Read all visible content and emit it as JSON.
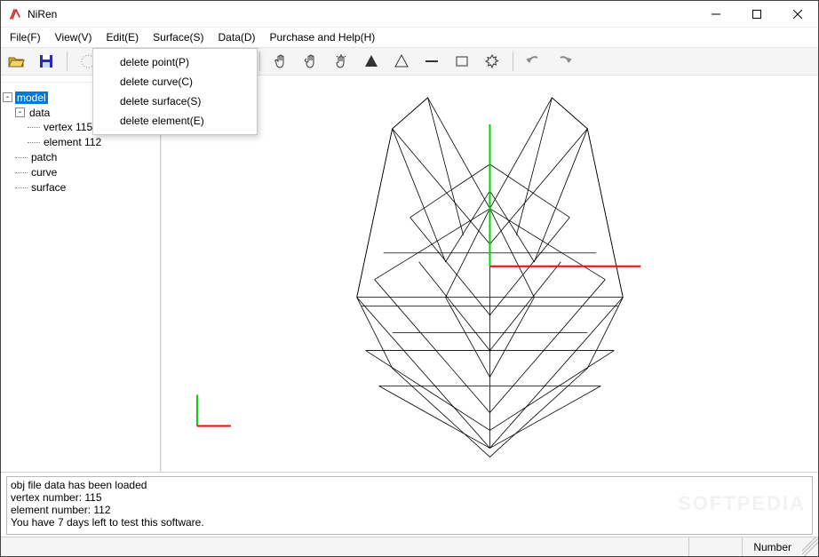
{
  "app": {
    "title": "NiRen"
  },
  "menu": {
    "items": [
      "File(F)",
      "View(V)",
      "Edit(E)",
      "Surface(S)",
      "Data(D)",
      "Purchase and  Help(H)"
    ]
  },
  "dropdown": {
    "items": [
      "delete point(P)",
      "delete curve(C)",
      "delete surface(S)",
      "delete element(E)"
    ]
  },
  "toolbar": {
    "icons": [
      {
        "name": "open-icon",
        "kind": "open",
        "sel": false
      },
      {
        "name": "save-icon",
        "kind": "save",
        "sel": false
      },
      {
        "name": "sep"
      },
      {
        "name": "sphere-dots-icon",
        "kind": "spheredots",
        "sel": false
      },
      {
        "name": "cube-icon",
        "kind": "cube",
        "sel": false
      },
      {
        "name": "globe1-icon",
        "kind": "globe1",
        "sel": false
      },
      {
        "name": "globe2-icon",
        "kind": "globe2",
        "sel": false
      },
      {
        "name": "globe3-icon",
        "kind": "globe3",
        "sel": true
      },
      {
        "name": "sphere-gold-icon",
        "kind": "spheregold",
        "sel": false
      },
      {
        "name": "sep"
      },
      {
        "name": "hand-icon",
        "kind": "hand",
        "sel": false
      },
      {
        "name": "hand-left-icon",
        "kind": "handswipe",
        "sel": false
      },
      {
        "name": "hand-rays-icon",
        "kind": "handrays",
        "sel": false
      },
      {
        "name": "triangle-fill-icon",
        "kind": "trifill",
        "sel": false
      },
      {
        "name": "triangle-outline-icon",
        "kind": "trioutline",
        "sel": false
      },
      {
        "name": "line-icon",
        "kind": "line",
        "sel": false
      },
      {
        "name": "rect-icon",
        "kind": "rect",
        "sel": false
      },
      {
        "name": "burst-icon",
        "kind": "burst",
        "sel": false
      },
      {
        "name": "sep"
      },
      {
        "name": "undo-icon",
        "kind": "undo",
        "sel": false
      },
      {
        "name": "redo-icon",
        "kind": "redo",
        "sel": false
      }
    ]
  },
  "tree": {
    "root": {
      "label": "model",
      "selected": true
    },
    "data": {
      "label": "data"
    },
    "vertex": {
      "label": "vertex 115"
    },
    "element": {
      "label": "element 112"
    },
    "patch": {
      "label": "patch"
    },
    "curve": {
      "label": "curve"
    },
    "surface": {
      "label": "surface"
    }
  },
  "console": {
    "text": "obj file data has been loaded\nvertex number: 115\nelement number: 112\nYou have 7 days left to test this software."
  },
  "status": {
    "number_label": "Number"
  },
  "colors": {
    "axis_x": "#ff0000",
    "axis_y": "#00d000",
    "icon_open": "#d8b02a",
    "icon_save": "#2a2ab8",
    "icon_gold": "#b38b18",
    "icon_dark": "#333333",
    "icon_gray": "#8a8a8a"
  },
  "watermark": "SOFTPEDIA"
}
